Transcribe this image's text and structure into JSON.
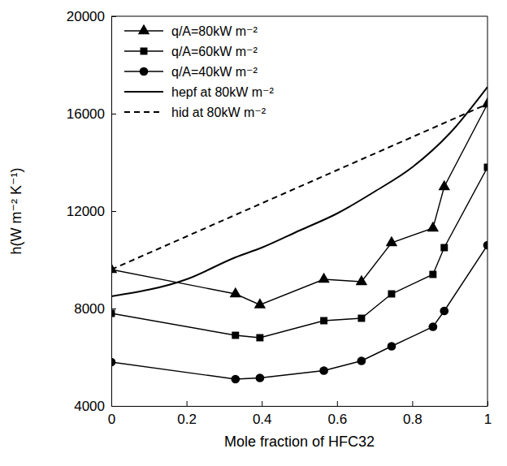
{
  "chart_data": {
    "type": "line",
    "x_label": "Mole fraction of  HFC32",
    "y_label": "h(W m⁻² K⁻¹)",
    "xlim": [
      0,
      1
    ],
    "xticks": [
      0,
      0.2,
      0.4,
      0.6,
      0.8,
      1
    ],
    "ylim": [
      4000,
      20000
    ],
    "yticks": [
      4000,
      8000,
      12000,
      16000,
      20000
    ],
    "grid": false,
    "legend": "upper left",
    "series": [
      {
        "name": "q/A=80kW m⁻²",
        "color": "#000000",
        "marker": "triangle",
        "line_style": "solid",
        "x": [
          0,
          0.33,
          0.395,
          0.565,
          0.665,
          0.745,
          0.855,
          0.885,
          1
        ],
        "values": [
          9600,
          8600,
          8150,
          9200,
          9100,
          10700,
          11300,
          13000,
          16400
        ]
      },
      {
        "name": "q/A=60kW m⁻²",
        "color": "#000000",
        "marker": "square",
        "line_style": "solid",
        "x": [
          0,
          0.33,
          0.395,
          0.565,
          0.665,
          0.745,
          0.855,
          0.885,
          1
        ],
        "values": [
          7800,
          6900,
          6800,
          7500,
          7600,
          8600,
          9400,
          10500,
          13800
        ]
      },
      {
        "name": "q/A=40kW m⁻²",
        "color": "#000000",
        "marker": "circle",
        "line_style": "solid",
        "x": [
          0,
          0.33,
          0.395,
          0.565,
          0.665,
          0.745,
          0.855,
          0.885,
          1
        ],
        "values": [
          5800,
          5100,
          5150,
          5450,
          5850,
          6450,
          7250,
          7900,
          10600
        ]
      },
      {
        "name": "hepf at 80kW m⁻²",
        "color": "#000000",
        "marker": "none",
        "line_style": "solid",
        "x": [
          0,
          0.2,
          0.33,
          0.4,
          0.5,
          0.6,
          0.7,
          0.8,
          0.9,
          1
        ],
        "values": [
          8500,
          9200,
          10100,
          10500,
          11200,
          11900,
          12800,
          13800,
          15200,
          17100
        ]
      },
      {
        "name": "hid at 80kW m⁻²",
        "color": "#000000",
        "marker": "none",
        "line_style": "dashed",
        "x": [
          0,
          1
        ],
        "values": [
          9600,
          16400
        ]
      }
    ]
  }
}
